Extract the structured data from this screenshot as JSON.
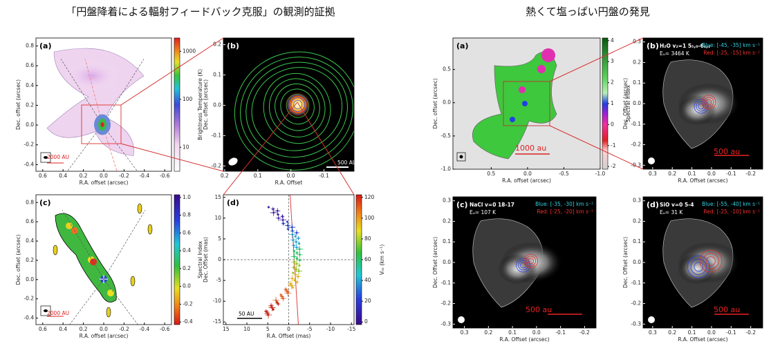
{
  "titles": {
    "left": "「円盤降着による輻射フィードバック克服」の観測的証拠",
    "right": "熱くて塩っぱい円盤の発見"
  },
  "panels": [
    {
      "label": "(a)",
      "xlabel": "R.A. offset (arcsec)",
      "ylabel": "Dec. offset (arcsec)",
      "xticks": [
        "0.6",
        "0.4",
        "0.2",
        "0.0",
        "-0.2",
        "-0.4",
        "-0.6"
      ],
      "yticks": [
        "0.8",
        "0.6",
        "0.4",
        "0.2",
        "0.0",
        "-0.2",
        "-0.4"
      ],
      "colorbar": {
        "label": "Brightness Temperature (K)",
        "ticks": [
          "1000",
          "100",
          "10"
        ]
      },
      "scale_bar": "2000 AU"
    },
    {
      "label": "(b)",
      "xlabel": "R.A. Offset",
      "ylabel": "Dec. offset (arcsec)",
      "xticks": [
        "0.2",
        "0.1",
        "0.0",
        "-0.1"
      ],
      "yticks": [
        "0.2",
        "0.1",
        "0.0",
        "-0.1",
        "-0.2"
      ],
      "scale_bar": "500 AU"
    },
    {
      "label": "(c)",
      "xlabel": "R.A. offset (arcsec)",
      "ylabel": "Dec. offset (arcsec)",
      "xticks": [
        "0.6",
        "0.4",
        "0.2",
        "0.0",
        "-0.2",
        "-0.4",
        "-0.6"
      ],
      "yticks": [
        "0.8",
        "0.6",
        "0.4",
        "0.2",
        "0.0",
        "-0.2",
        "-0.4"
      ],
      "colorbar": {
        "label": "Spectral Index",
        "ticks": [
          "1.0",
          "0.8",
          "0.6",
          "0.4",
          "0.2",
          "0.0",
          "-0.2",
          "-0.4"
        ]
      },
      "scale_bar": "2000 AU"
    },
    {
      "label": "(d)",
      "xlabel": "R.A. Offset (mas)",
      "ylabel": "Dec. Offset (mas)",
      "xticks": [
        "15",
        "10",
        "5",
        "0",
        "-5",
        "-10",
        "-15"
      ],
      "yticks": [
        "15",
        "10",
        "5",
        "0",
        "-5",
        "-10",
        "-15"
      ],
      "colorbar": {
        "label": "Vₗₛᵣ (km s⁻¹)",
        "ticks": [
          "120",
          "100",
          "80",
          "60",
          "40",
          "20",
          "0"
        ]
      },
      "scale_bar": "50 AU"
    },
    {
      "label": "(a)",
      "xlabel": "R.A. offset (arcsec)",
      "ylabel": "Dec. offset (arcsec)",
      "xticks": [
        "0.5",
        "0.0",
        "-0.5",
        "-1.0"
      ],
      "yticks": [
        "0.5",
        "0.0",
        "-0.5",
        "-1.0"
      ],
      "colorbar": {
        "label": "Spectral index",
        "ticks": [
          "4",
          "3",
          "2",
          "1",
          "0",
          "-1",
          "-2"
        ]
      },
      "scale_bar": "1000 au"
    },
    {
      "label": "(b)",
      "line": "H₂O v₂=1 5₅,₀-6₄,₃",
      "energy": "Eᵤ= 3464 K",
      "blue": "Blue: [-45, -35] km s⁻¹",
      "red": "Red: [-25, -15] km s⁻¹",
      "xlabel": "R.A. Offset (arcsec)",
      "ylabel": "Dec. Offset (arcsec)",
      "xticks": [
        "0.3",
        "0.2",
        "0.1",
        "0.0",
        "-0.1",
        "-0.2"
      ],
      "yticks": [
        "0.3",
        "0.2",
        "0.1",
        "0.0",
        "-0.1",
        "-0.2",
        "-0.3"
      ],
      "scale_bar": "500 au"
    },
    {
      "label": "(c)",
      "line": "NaCl v=0 18-17",
      "energy": "Eᵤ= 107 K",
      "blue": "Blue: [-35, -30] km s⁻¹",
      "red": "Red: [-25, -20] km s⁻¹",
      "xlabel": "R.A. Offset (arcsec)",
      "ylabel": "Dec. Offset (arcsec)",
      "xticks": [
        "0.3",
        "0.2",
        "0.1",
        "0.0",
        "-0.1",
        "-0.2"
      ],
      "yticks": [
        "0.3",
        "0.2",
        "0.1",
        "0.0",
        "-0.1",
        "-0.2",
        "-0.3"
      ],
      "scale_bar": "500 au"
    },
    {
      "label": "(d)",
      "line": "SiO v=0 5-4",
      "energy": "Eᵤ= 31 K",
      "blue": "Blue: [-55, -40] km s⁻¹",
      "red": "Red: [-25, -10] km s⁻¹",
      "xlabel": "R.A. Offset (arcsec)",
      "ylabel": "Dec. Offset (arcsec)",
      "xticks": [
        "0.3",
        "0.2",
        "0.1",
        "0.0",
        "-0.1",
        "-0.2"
      ],
      "yticks": [
        "0.3",
        "0.2",
        "0.1",
        "0.0",
        "-0.1",
        "-0.2",
        "-0.3"
      ],
      "scale_bar": "500 au"
    }
  ]
}
